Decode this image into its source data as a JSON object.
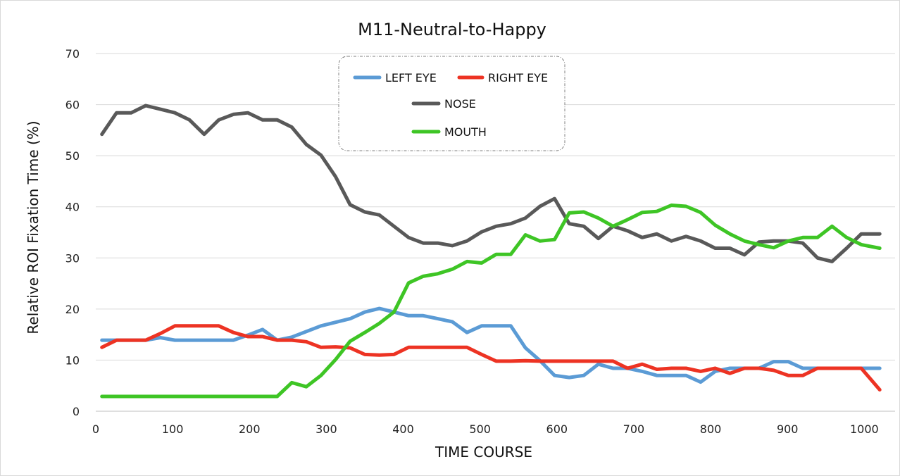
{
  "chart_data": {
    "type": "line",
    "title": "M11-Neutral-to-Happy",
    "xlabel": "TIME  COURSE",
    "ylabel": "Relative  ROI  Fixation  Time  (%)",
    "xlim": [
      0,
      1040
    ],
    "ylim": [
      0,
      70
    ],
    "xticks": [
      0,
      100,
      200,
      300,
      400,
      500,
      600,
      700,
      800,
      900,
      1000
    ],
    "yticks": [
      0,
      10,
      20,
      30,
      40,
      50,
      60,
      70
    ],
    "grid": "horizontal",
    "legend_position": "top-center",
    "x": [
      8,
      27,
      46,
      65,
      84,
      103,
      122,
      141,
      160,
      179,
      198,
      217,
      236,
      255,
      274,
      293,
      312,
      331,
      350,
      369,
      388,
      407,
      426,
      445,
      464,
      483,
      502,
      521,
      540,
      559,
      578,
      597,
      616,
      635,
      654,
      673,
      692,
      711,
      730,
      749,
      768,
      787,
      806,
      825,
      844,
      863,
      882,
      901,
      920,
      939,
      958,
      977,
      996,
      1020
    ],
    "series": [
      {
        "name": "LEFT EYE",
        "color": "#5b9bd5",
        "values": [
          13.9,
          13.9,
          13.9,
          13.9,
          14.4,
          13.9,
          13.9,
          13.9,
          13.9,
          13.9,
          14.9,
          16.0,
          13.9,
          14.5,
          15.6,
          16.7,
          17.4,
          18.1,
          19.4,
          20.1,
          19.4,
          18.7,
          18.7,
          18.1,
          17.5,
          15.4,
          16.7,
          16.7,
          16.7,
          12.4,
          9.9,
          7.0,
          6.6,
          7.0,
          9.2,
          8.4,
          8.4,
          7.8,
          7.0,
          7.0,
          7.0,
          5.7,
          7.8,
          8.4,
          8.4,
          8.4,
          9.7,
          9.7,
          8.4,
          8.4,
          8.4,
          8.4,
          8.4,
          8.4
        ]
      },
      {
        "name": "RIGHT EYE",
        "color": "#ed3323",
        "values": [
          12.5,
          13.9,
          13.9,
          13.9,
          15.2,
          16.7,
          16.7,
          16.7,
          16.7,
          15.4,
          14.6,
          14.6,
          13.9,
          13.9,
          13.6,
          12.5,
          12.6,
          12.4,
          11.1,
          11.0,
          11.1,
          12.5,
          12.5,
          12.5,
          12.5,
          12.5,
          11.1,
          9.8,
          9.8,
          9.9,
          9.8,
          9.8,
          9.8,
          9.8,
          9.8,
          9.8,
          8.4,
          9.2,
          8.2,
          8.4,
          8.4,
          7.8,
          8.4,
          7.4,
          8.4,
          8.4,
          8.0,
          7.0,
          7.0,
          8.4,
          8.4,
          8.4,
          8.4,
          4.2
        ]
      },
      {
        "name": "NOSE",
        "color": "#595959",
        "values": [
          54.2,
          58.4,
          58.4,
          59.8,
          59.1,
          58.4,
          57.0,
          54.2,
          57.0,
          58.1,
          58.4,
          57.0,
          57.0,
          55.6,
          52.2,
          50.1,
          45.9,
          40.4,
          39.0,
          38.4,
          36.2,
          34.0,
          32.9,
          32.9,
          32.4,
          33.3,
          35.1,
          36.2,
          36.7,
          37.8,
          40.1,
          41.6,
          36.7,
          36.2,
          33.8,
          36.2,
          35.3,
          34.0,
          34.7,
          33.3,
          34.2,
          33.3,
          31.9,
          31.9,
          30.6,
          33.1,
          33.3,
          33.3,
          32.9,
          30.0,
          29.3,
          31.9,
          34.7,
          34.7
        ]
      },
      {
        "name": "MOUTH",
        "color": "#3ec525",
        "values": [
          2.9,
          2.9,
          2.9,
          2.9,
          2.9,
          2.9,
          2.9,
          2.9,
          2.9,
          2.9,
          2.9,
          2.9,
          2.9,
          5.6,
          4.8,
          7.0,
          10.1,
          13.7,
          15.4,
          17.2,
          19.4,
          25.1,
          26.4,
          26.9,
          27.8,
          29.3,
          29.0,
          30.7,
          30.7,
          34.5,
          33.3,
          33.6,
          38.8,
          39.0,
          37.8,
          36.2,
          37.5,
          38.9,
          39.1,
          40.3,
          40.1,
          38.9,
          36.4,
          34.7,
          33.3,
          32.6,
          32.0,
          33.3,
          34.0,
          34.0,
          36.2,
          34.0,
          32.6,
          31.9
        ]
      }
    ]
  }
}
